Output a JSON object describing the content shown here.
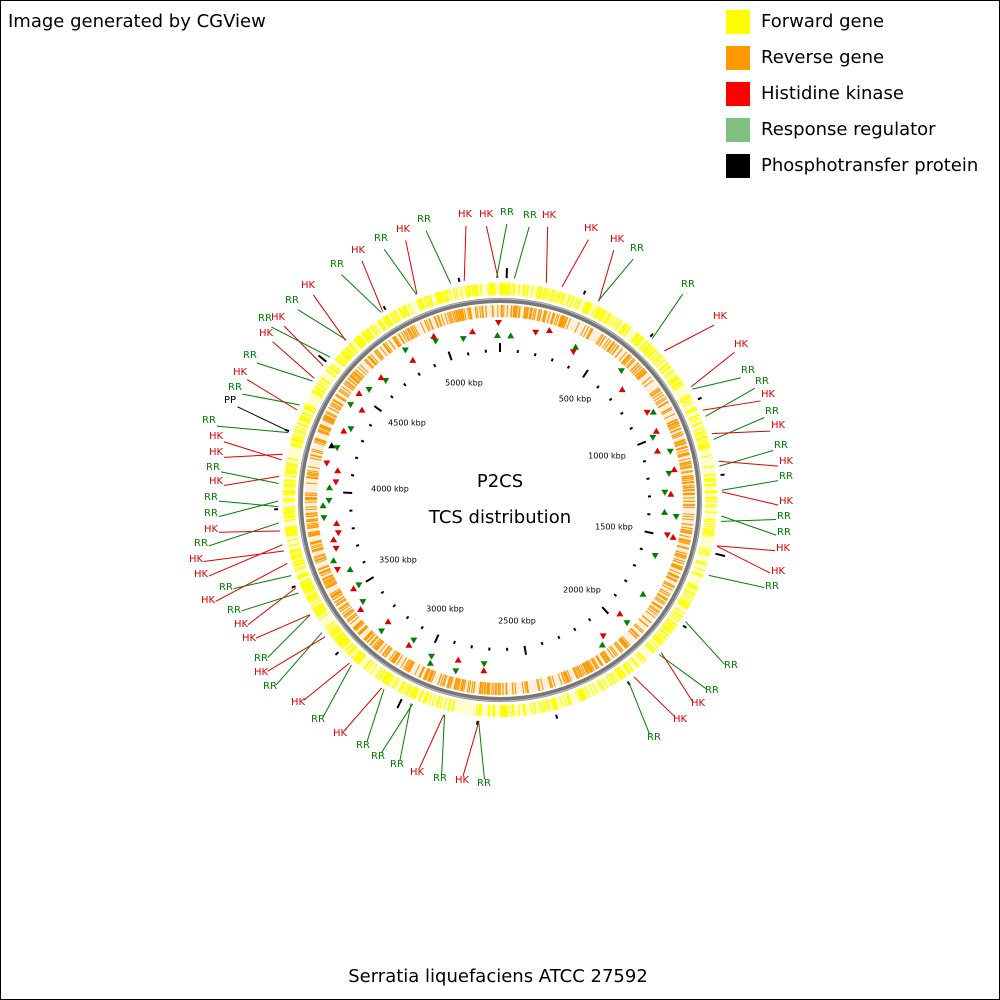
{
  "header": {
    "credit": "Image generated by CGView"
  },
  "legend": [
    {
      "label": "Forward gene",
      "color": "#ffff00"
    },
    {
      "label": "Reverse gene",
      "color": "#ff9900"
    },
    {
      "label": "Histidine kinase",
      "color": "#ff0000"
    },
    {
      "label": "Response regulator",
      "color": "#7fbf7f"
    },
    {
      "label": "Phosphotransfer protein",
      "color": "#000000"
    }
  ],
  "map": {
    "title": "P2CS",
    "subtitle": "TCS distribution",
    "ticks": [
      "500 kbp",
      "1000 kbp",
      "1500 kbp",
      "2000 kbp",
      "2500 kbp",
      "3000 kbp",
      "3500 kbp",
      "4000 kbp",
      "4500 kbp",
      "5000 kbp"
    ],
    "features": [
      "RR",
      "HK",
      "HK",
      "HK",
      "RR",
      "RR",
      "HK",
      "HK",
      "RR",
      "RR",
      "HK",
      "RR",
      "HK",
      "RR",
      "HK",
      "RR",
      "HK",
      "RR",
      "RR",
      "HK",
      "HK",
      "RR",
      "RR",
      "RR",
      "HK",
      "HK",
      "RR",
      "RR",
      "HK",
      "RR",
      "HK",
      "RR",
      "RR",
      "RR",
      "HK",
      "RR",
      "HK",
      "RR",
      "HK",
      "RR",
      "HK",
      "HK",
      "RR",
      "HK",
      "RR",
      "HK",
      "HK",
      "RR",
      "HK",
      "RR",
      "RR",
      "HK",
      "RR",
      "HK",
      "HK",
      "RR",
      "PP",
      "RR",
      "HK",
      "RR",
      "HK",
      "RR",
      "HK",
      "RR",
      "HK",
      "RR",
      "HK",
      "RR",
      "HK",
      "RR",
      "HK",
      "HK",
      "RR"
    ]
  },
  "footer": "Serratia liquefaciens ATCC 27592"
}
